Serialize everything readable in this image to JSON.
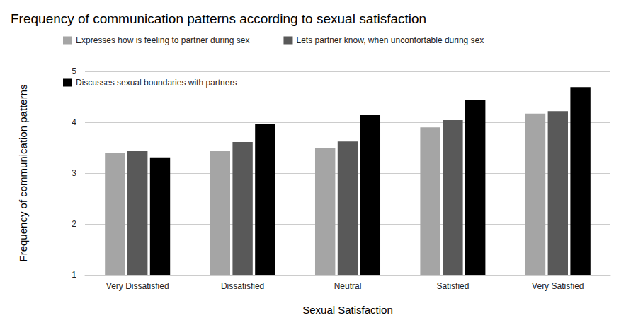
{
  "chart_data": {
    "type": "bar",
    "title": "Frequency of communication patterns according to sexual satisfaction",
    "xlabel": "Sexual Satisfaction",
    "ylabel": "Frequency of communication patterns",
    "categories": [
      "Very Dissatisfied",
      "Dissatisfied",
      "Neutral",
      "Satisfied",
      "Very Satisfied"
    ],
    "series": [
      {
        "name": "Expresses how is feeling to partner during sex",
        "color": "#a5a5a5",
        "values": [
          3.39,
          3.43,
          3.49,
          3.9,
          4.17
        ]
      },
      {
        "name": "Lets partner know, when unconfortable during sex",
        "color": "#595959",
        "values": [
          3.43,
          3.61,
          3.62,
          4.04,
          4.22
        ]
      },
      {
        "name": "Discusses sexual boundaries with partners",
        "color": "#000000",
        "values": [
          3.31,
          3.97,
          4.14,
          4.43,
          4.69
        ]
      }
    ],
    "ylim": [
      1,
      5
    ],
    "yticks": [
      1,
      2,
      3,
      4,
      5
    ],
    "grid": true,
    "legend": "top-left"
  }
}
